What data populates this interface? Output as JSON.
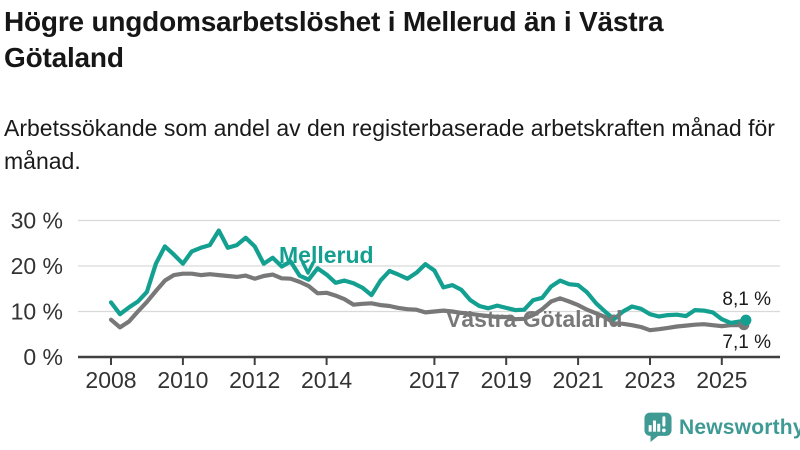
{
  "header": {
    "title": "Högre ungdomsarbetslöshet i Mellerud än i Västra Götaland",
    "subtitle": "Arbetssökande som andel av den registerbaserade arbetskraften månad för månad."
  },
  "chart_data": {
    "type": "line",
    "unit": "%",
    "xlim": [
      2008,
      2025.67
    ],
    "ylim": [
      0,
      30
    ],
    "grid": "horizontal",
    "legend": "inline-series-labels",
    "yticks": [
      30,
      20,
      10,
      0
    ],
    "ytick_labels": [
      "30 %",
      "20 %",
      "10 %",
      "0 %"
    ],
    "xticks": [
      2008,
      2010,
      2012,
      2014,
      2017,
      2019,
      2021,
      2023,
      2025
    ],
    "x": [
      2008,
      2008.25,
      2008.5,
      2008.75,
      2009,
      2009.25,
      2009.5,
      2009.75,
      2010,
      2010.25,
      2010.5,
      2010.75,
      2011,
      2011.25,
      2011.5,
      2011.75,
      2012,
      2012.25,
      2012.5,
      2012.75,
      2013,
      2013.25,
      2013.5,
      2013.75,
      2014,
      2014.25,
      2014.5,
      2014.75,
      2015,
      2015.25,
      2015.5,
      2015.75,
      2016,
      2016.25,
      2016.5,
      2016.75,
      2017,
      2017.25,
      2017.5,
      2017.75,
      2018,
      2018.25,
      2018.5,
      2018.75,
      2019,
      2019.25,
      2019.5,
      2019.75,
      2020,
      2020.25,
      2020.5,
      2020.75,
      2021,
      2021.25,
      2021.5,
      2021.75,
      2022,
      2022.25,
      2022.5,
      2022.75,
      2023,
      2023.25,
      2023.5,
      2023.75,
      2024,
      2024.25,
      2024.5,
      2024.75,
      2025,
      2025.25,
      2025.5,
      2025.67
    ],
    "series": [
      {
        "name": "Mellerud",
        "color": "#14a091",
        "end_label": "8,1 %",
        "values": [
          12.0,
          9.4,
          10.9,
          12.2,
          14.3,
          20.5,
          24.3,
          22.5,
          20.5,
          23.2,
          24.0,
          24.6,
          27.8,
          24.0,
          24.6,
          26.2,
          24.3,
          20.5,
          21.8,
          19.9,
          21.0,
          17.9,
          17.0,
          19.5,
          18.1,
          16.3,
          16.8,
          16.2,
          15.2,
          13.6,
          16.8,
          18.9,
          18.1,
          17.2,
          18.5,
          20.4,
          19.0,
          15.3,
          15.8,
          14.8,
          12.5,
          11.2,
          10.7,
          11.3,
          10.8,
          10.3,
          10.4,
          12.5,
          13.0,
          15.5,
          16.8,
          16.0,
          15.8,
          14.2,
          11.8,
          10.0,
          8.3,
          10.0,
          11.1,
          10.6,
          9.4,
          8.9,
          9.2,
          9.3,
          9.0,
          10.3,
          10.2,
          9.8,
          8.3,
          7.5,
          7.8,
          8.1
        ]
      },
      {
        "name": "Västra Götaland",
        "color": "#787878",
        "end_label": "7,1 %",
        "values": [
          8.2,
          6.5,
          7.8,
          10.0,
          12.1,
          14.5,
          16.8,
          18.0,
          18.3,
          18.3,
          18.0,
          18.2,
          18.0,
          17.8,
          17.6,
          17.9,
          17.2,
          17.8,
          18.1,
          17.3,
          17.2,
          16.5,
          15.6,
          14.0,
          14.1,
          13.5,
          12.7,
          11.5,
          11.7,
          11.8,
          11.4,
          11.2,
          10.8,
          10.5,
          10.4,
          9.8,
          10.0,
          10.2,
          10.0,
          9.7,
          9.5,
          9.2,
          9.0,
          8.8,
          8.8,
          8.3,
          8.4,
          9.2,
          10.5,
          12.2,
          12.9,
          12.2,
          11.4,
          10.4,
          9.6,
          8.8,
          7.4,
          7.3,
          7.0,
          6.6,
          5.9,
          6.1,
          6.4,
          6.7,
          6.9,
          7.1,
          7.2,
          7.0,
          6.8,
          7.0,
          7.0,
          7.1
        ]
      }
    ],
    "colors": {
      "grid": "#d9d9d9",
      "axis": "#404040",
      "tick_text": "#333333",
      "value_text": "#1a1a1a"
    }
  },
  "footer": {
    "brand": "Newsworthy",
    "brand_color": "#3f9a94",
    "logo_icon": "bar-chart-speech-bubble-icon"
  }
}
